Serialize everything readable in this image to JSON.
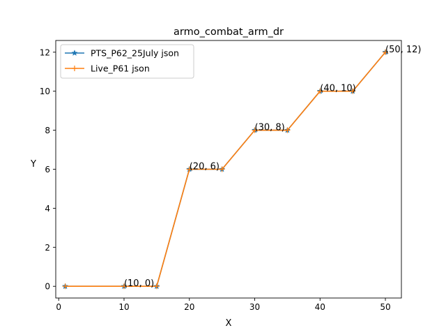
{
  "chart_data": {
    "type": "line",
    "title": "armo_combat_arm_dr",
    "xlabel": "X",
    "ylabel": "Y",
    "xlim": [
      -0.45,
      52.45
    ],
    "ylim": [
      -0.6,
      12.6
    ],
    "xticks": [
      0,
      10,
      20,
      30,
      40,
      50
    ],
    "yticks": [
      0,
      2,
      4,
      6,
      8,
      10,
      12
    ],
    "grid": false,
    "legend_position": "upper-left",
    "series": [
      {
        "name": "PTS_P62_25July json",
        "color": "#1f77b4",
        "marker": "star",
        "x": [
          1,
          10,
          15,
          20,
          25,
          30,
          35,
          40,
          45,
          50
        ],
        "y": [
          0,
          0,
          0,
          6,
          6,
          8,
          8,
          10,
          10,
          12
        ]
      },
      {
        "name": "Live_P61 json",
        "color": "#ff7f0e",
        "marker": "plus",
        "x": [
          1,
          10,
          15,
          20,
          25,
          30,
          35,
          40,
          45,
          50
        ],
        "y": [
          0,
          0,
          0,
          6,
          6,
          8,
          8,
          10,
          10,
          12
        ]
      }
    ],
    "annotations": [
      {
        "text": "(10, 0)",
        "x": 10,
        "y": 0
      },
      {
        "text": "(20, 6)",
        "x": 20,
        "y": 6
      },
      {
        "text": "(30, 8)",
        "x": 30,
        "y": 8
      },
      {
        "text": "(40, 10)",
        "x": 40,
        "y": 10
      },
      {
        "text": "(50, 12)",
        "x": 50,
        "y": 12
      }
    ]
  }
}
